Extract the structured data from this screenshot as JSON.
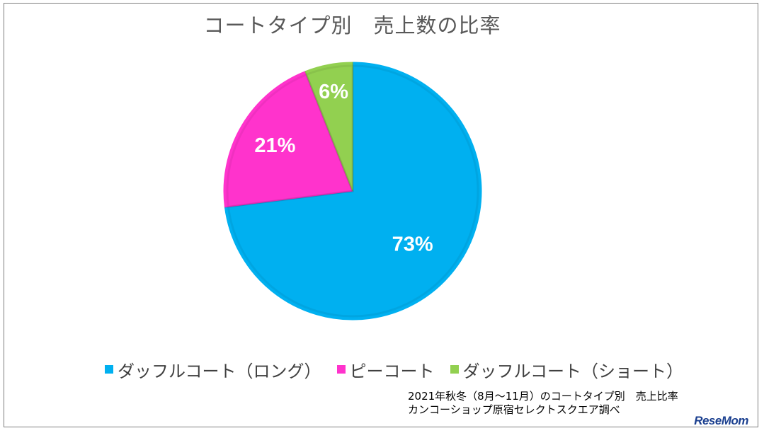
{
  "chart_data": {
    "type": "pie",
    "title": "コートタイプ別　売上数の比率",
    "slices": [
      {
        "name": "ダッフルコート（ロング）",
        "value": 73,
        "label": "73%",
        "color": "#00b0f0"
      },
      {
        "name": "ピーコート",
        "value": 21,
        "label": "21%",
        "color": "#ff33cc"
      },
      {
        "name": "ダッフルコート（ショート）",
        "value": 6,
        "label": "6%",
        "color": "#92d050"
      }
    ],
    "legend_position": "bottom",
    "start_angle_deg": 0,
    "direction": "clockwise"
  },
  "source_note": {
    "line1": "2021年秋冬（8月～11月）のコートタイプ別　売上比率",
    "line2": "カンコーショップ原宿セレクトスクエア調べ"
  },
  "logo_text": "ReseMom"
}
